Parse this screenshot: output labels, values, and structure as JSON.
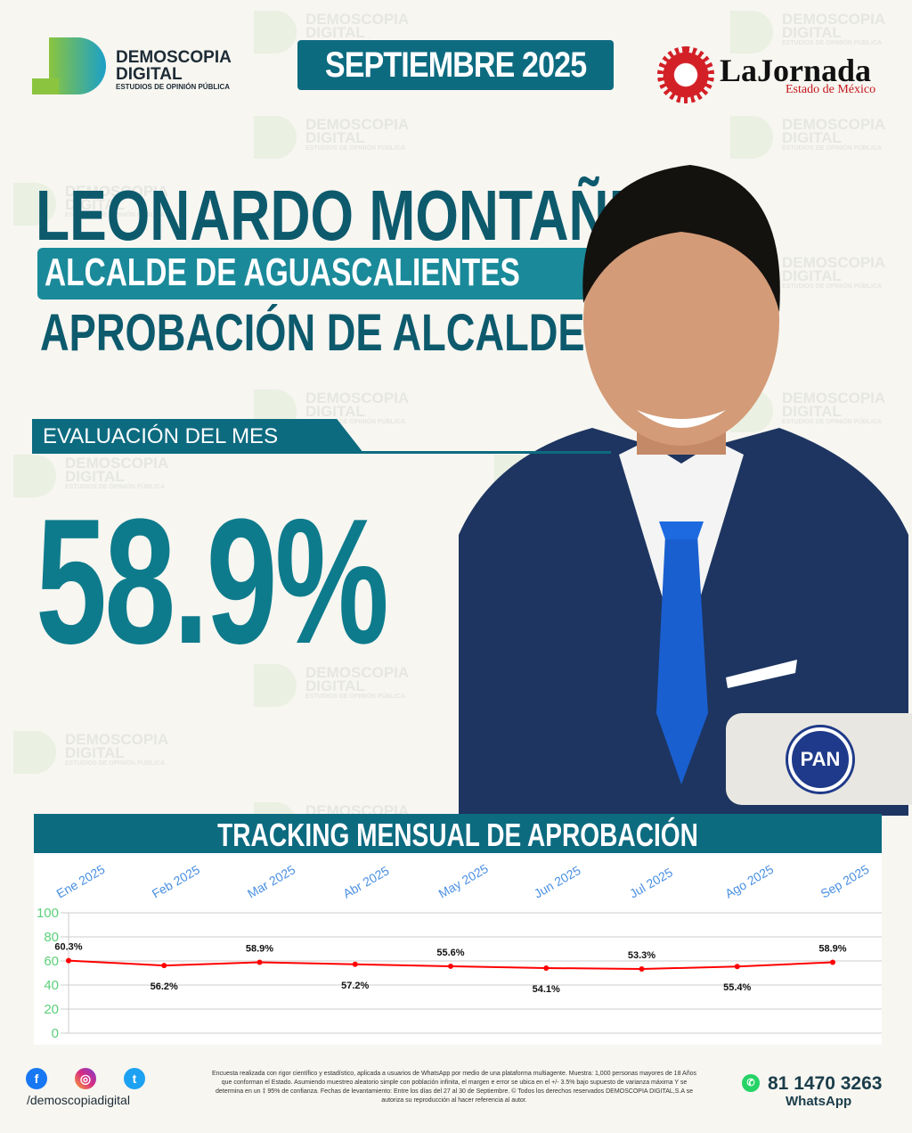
{
  "brand": {
    "name": "DEMOSCOPIA",
    "name2": "DIGITAL",
    "tagline": "ESTUDIOS DE OPINIÓN PÚBLICA"
  },
  "watermark": {
    "line1": "DEMOSCOPIA",
    "line2": "DIGITAL",
    "line3": "ESTUDIOS DE OPINIÓN PÚBLICA"
  },
  "header": {
    "month": "SEPTIEMBRE 2025",
    "partner": "LaJornada",
    "partner_sub": "Estado de México"
  },
  "person": {
    "name": "LEONARDO MONTAÑEZ",
    "role": "ALCALDE DE AGUASCALIENTES",
    "section": "APROBACIÓN DE ALCALDES",
    "party": "PAN"
  },
  "evaluation": {
    "label": "EVALUACIÓN DEL MES",
    "value": "58.9%"
  },
  "chart_data": {
    "type": "line",
    "title": "TRACKING MENSUAL DE APROBACIÓN",
    "categories": [
      "Ene 2025",
      "Feb 2025",
      "Mar 2025",
      "Abr 2025",
      "May 2025",
      "Jun 2025",
      "Jul 2025",
      "Ago 2025",
      "Sep 2025"
    ],
    "values": [
      60.3,
      56.2,
      58.9,
      57.2,
      55.6,
      54.1,
      53.3,
      55.4,
      58.9
    ],
    "labels": [
      "60.3%",
      "56.2%",
      "58.9%",
      "57.2%",
      "55.6%",
      "54.1%",
      "53.3%",
      "55.4%",
      "58.9%"
    ],
    "yticks": [
      "0",
      "20",
      "40",
      "60",
      "80",
      "100"
    ],
    "ylim": [
      0,
      100
    ],
    "grid": true,
    "line_color": "#ff0000",
    "tick_color": "#4a90e2",
    "ytick_color": "#5ccf7a"
  },
  "footer": {
    "handle": "/demoscopiadigital",
    "phone": "81 1470 3263",
    "whatsapp": "WhatsApp",
    "disclaimer": "Encuesta realizada con rigor científico y estadístico, aplicada a usuarios de WhatsApp por medio de una plataforma multiagente. Muestra: 1,000 personas mayores de 18 Años que conforman el Estado. Asumiendo muestreo aleatorio simple con población infinita, el margen e error se ubica en el +/- 3.5% bajo supuesto de varianza máxima Y se determina en un ‡ 95% de confianza. Fechas de levantamiento: Entre los días del 27 al 30 de Septiembre. © Todos los derechos reservados DEMOSCOPIA DIGITAL,S.A se autoriza su reproducción al hacer referencia al autor.",
    "social": [
      "facebook-icon",
      "instagram-icon",
      "twitter-icon"
    ]
  }
}
